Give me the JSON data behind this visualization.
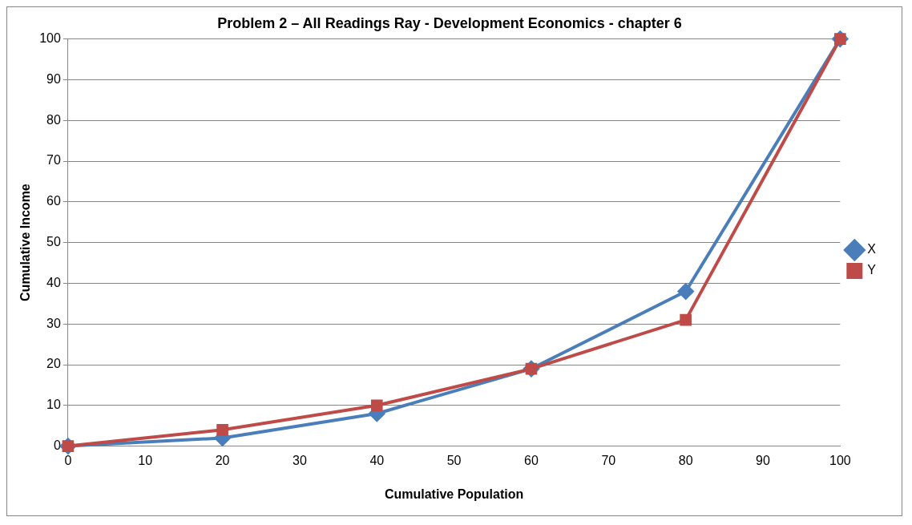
{
  "chart_data": {
    "type": "line",
    "title": "Problem 2 – All Readings Ray - Development Economics - chapter 6",
    "xlabel": "Cumulative Population",
    "ylabel": "Cumulative Income",
    "x": [
      0,
      20,
      40,
      60,
      80,
      100
    ],
    "series": [
      {
        "name": "X",
        "color": "#4a7ebb",
        "values": [
          0,
          2,
          8,
          19,
          38,
          100
        ],
        "marker": "diamond"
      },
      {
        "name": "Y",
        "color": "#be4b48",
        "values": [
          0,
          4,
          10,
          19,
          31,
          100
        ],
        "marker": "square"
      }
    ],
    "xlim": [
      0,
      100
    ],
    "xticks": [
      0,
      10,
      20,
      30,
      40,
      50,
      60,
      70,
      80,
      90,
      100
    ],
    "ylim": [
      0,
      100
    ],
    "yticks": [
      0,
      10,
      20,
      30,
      40,
      50,
      60,
      70,
      80,
      90,
      100
    ],
    "grid": "y",
    "legend": "right",
    "line_style": "solid"
  }
}
